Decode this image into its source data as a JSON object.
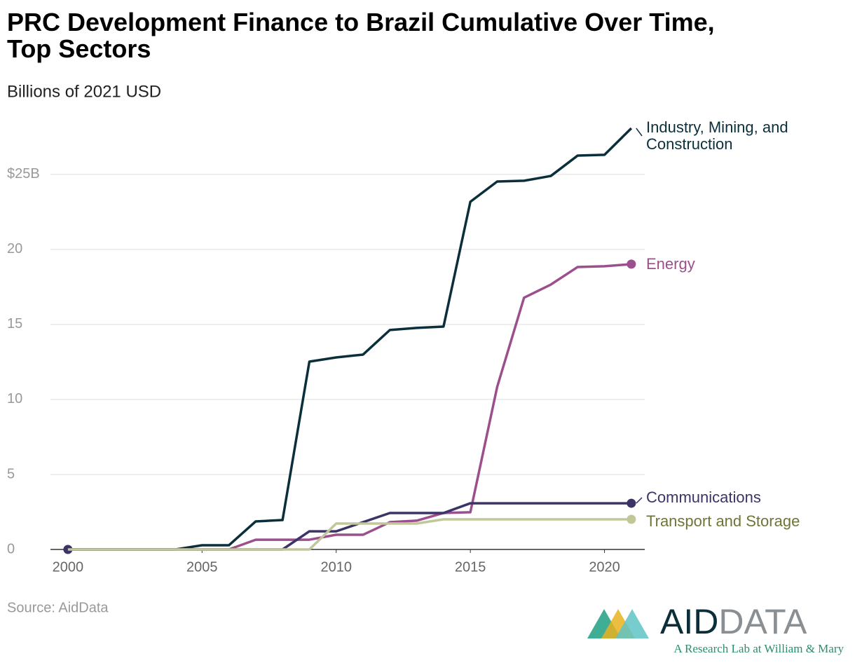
{
  "chart_data": {
    "type": "line",
    "title": "PRC Development Finance to Brazil Cumulative Over Time, Top Sectors",
    "subtitle": "Billions of 2021 USD",
    "source": "Source: AidData",
    "x": [
      2000,
      2001,
      2002,
      2003,
      2004,
      2005,
      2006,
      2007,
      2008,
      2009,
      2010,
      2011,
      2012,
      2013,
      2014,
      2015,
      2016,
      2017,
      2018,
      2019,
      2020,
      2021
    ],
    "series": [
      {
        "name": "Industry, Mining, and Construction",
        "color": "#0b2f3a",
        "label_color": "#0b2f3a",
        "end_marker": false,
        "values": [
          0,
          0,
          0,
          0,
          0,
          0.28,
          0.28,
          1.87,
          1.96,
          12.52,
          12.8,
          12.99,
          14.63,
          14.77,
          14.86,
          23.18,
          24.53,
          24.58,
          24.9,
          26.26,
          26.31,
          28.08
        ]
      },
      {
        "name": "Energy",
        "color": "#9b4f8c",
        "label_color": "#9b4f8c",
        "end_marker": true,
        "values": [
          0,
          0,
          0,
          0,
          0,
          0,
          0,
          0.65,
          0.65,
          0.65,
          0.98,
          0.98,
          1.82,
          1.92,
          2.43,
          2.48,
          10.84,
          16.78,
          17.66,
          18.83,
          18.88,
          19.02
        ]
      },
      {
        "name": "Communications",
        "color": "#3b3466",
        "label_color": "#3b3466",
        "end_marker": true,
        "start_marker": true,
        "values": [
          0,
          0,
          0,
          0,
          0,
          0,
          0,
          0,
          0,
          1.21,
          1.21,
          1.82,
          2.43,
          2.43,
          2.43,
          3.08,
          3.08,
          3.08,
          3.08,
          3.08,
          3.08,
          3.08
        ]
      },
      {
        "name": "Transport and Storage",
        "color": "#c2c79a",
        "label_color": "#6f7538",
        "end_marker": true,
        "values": [
          0,
          0,
          0,
          0,
          0,
          0,
          0,
          0,
          0,
          0,
          1.73,
          1.73,
          1.73,
          1.73,
          2.01,
          2.01,
          2.01,
          2.01,
          2.01,
          2.01,
          2.01,
          2.01
        ]
      }
    ],
    "xlim": [
      1999.35,
      2021.5
    ],
    "ylim": [
      0,
      28.5
    ],
    "xticks": [
      2000,
      2005,
      2010,
      2015,
      2020
    ],
    "yticks": [
      0,
      5,
      10,
      15,
      20,
      {
        "value": 25,
        "label": "$25B"
      }
    ],
    "grid": true
  },
  "logo": {
    "name_a": "AID",
    "name_b": "DATA",
    "tagline": "A Research Lab at William & Mary"
  }
}
